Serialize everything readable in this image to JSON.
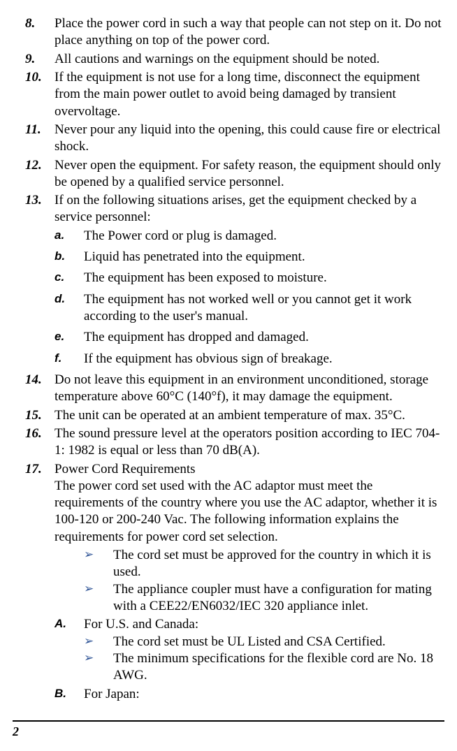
{
  "items": [
    {
      "n": "8.",
      "t": "Place the power cord in such a way that people can not step on it. Do not place anything on top of the power cord."
    },
    {
      "n": "9.",
      "t": "All cautions and warnings on the equipment should be noted."
    },
    {
      "n": "10.",
      "t": "If the equipment is not use for a long time, disconnect the equipment from the main power outlet to avoid being damaged by transient overvoltage."
    },
    {
      "n": "11.",
      "t": "Never pour any liquid into the opening, this could cause fire or electrical shock."
    },
    {
      "n": "12.",
      "t": "Never open the equipment. For safety reason, the equipment should only be opened by a qualified service personnel."
    },
    {
      "n": "13.",
      "t": "If on the following situations arises, get the equipment checked by a service personnel:"
    }
  ],
  "subs13": [
    {
      "l": "a.",
      "t": "The Power cord or plug is damaged."
    },
    {
      "l": "b.",
      "t": "Liquid has penetrated into the equipment."
    },
    {
      "l": "c.",
      "t": "The equipment has been exposed to moisture."
    },
    {
      "l": "d.",
      "t": "The equipment has not worked well or you cannot get it work according to the user's manual."
    },
    {
      "l": "e.",
      "t": "The equipment has dropped and damaged."
    },
    {
      "l": "f.",
      "t": "If the equipment has obvious sign of breakage."
    }
  ],
  "items2": [
    {
      "n": "14.",
      "t": "Do not leave this equipment in an environment unconditioned, storage temperature above 60°C (140°f), it may damage the equipment."
    },
    {
      "n": "15.",
      "t": "The unit can be operated at an ambient temperature of max. 35°C."
    },
    {
      "n": "16.",
      "t": "The sound pressure level at the operators position according to IEC 704-1: 1982 is equal or less than 70 dB(A)."
    }
  ],
  "item17": {
    "n": "17.",
    "lead": "Power Cord Requirements",
    "para": "The power cord set used with the AC adaptor must meet the requirements of the country where you use the AC adaptor, whether it is 100-120 or 200-240 Vac. The following information explains the requirements for power cord set selection."
  },
  "bulletsTop": [
    "The cord set must be approved for the country in which it is used.",
    "The appliance coupler must have a configuration for mating with a CEE22/EN6032/IEC 320 appliance inlet."
  ],
  "regionA": {
    "l": "A.",
    "t": "For U.S. and Canada:"
  },
  "bulletsA": [
    "The cord set must be UL Listed and CSA Certified.",
    "The minimum specifications for the flexible cord are No. 18 AWG."
  ],
  "regionB": {
    "l": "B.",
    "t": "For Japan:"
  },
  "bulletGlyph": "➢",
  "pageNumber": "2",
  "colors": {
    "bullet": "#2f5496",
    "text": "#000000",
    "bg": "#ffffff"
  },
  "typography": {
    "body_family": "Times New Roman",
    "body_size_pt": 14,
    "label_family": "Arial",
    "label_style": "bold italic"
  }
}
